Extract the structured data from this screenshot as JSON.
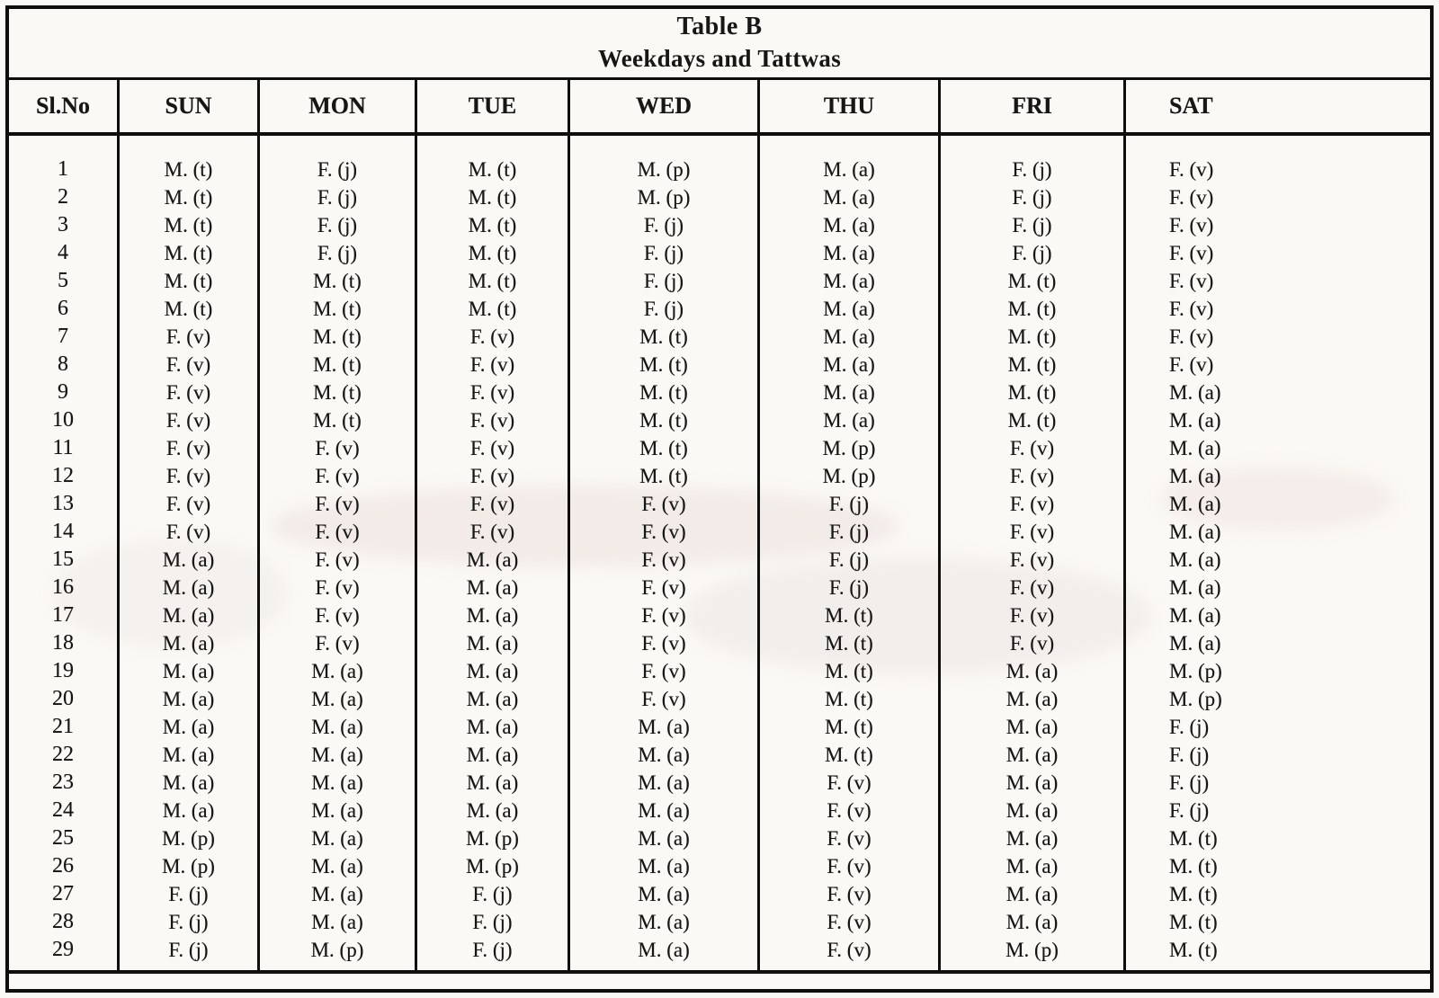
{
  "title": {
    "line1": "Table B",
    "line2": "Weekdays and Tattwas"
  },
  "columns": [
    "Sl.No",
    "SUN",
    "MON",
    "TUE",
    "WED",
    "THU",
    "FRI",
    "SAT"
  ],
  "rows": [
    {
      "sl": "1",
      "values": [
        "M. (t)",
        "F. (j)",
        "M. (t)",
        "M. (p)",
        "M. (a)",
        "F. (j)",
        "F. (v)"
      ]
    },
    {
      "sl": "2",
      "values": [
        "M. (t)",
        "F. (j)",
        "M. (t)",
        "M. (p)",
        "M. (a)",
        "F. (j)",
        "F. (v)"
      ]
    },
    {
      "sl": "3",
      "values": [
        "M. (t)",
        "F. (j)",
        "M. (t)",
        "F. (j)",
        "M. (a)",
        "F. (j)",
        "F. (v)"
      ]
    },
    {
      "sl": "4",
      "values": [
        "M. (t)",
        "F. (j)",
        "M. (t)",
        "F. (j)",
        "M. (a)",
        "F. (j)",
        "F. (v)"
      ]
    },
    {
      "sl": "5",
      "values": [
        "M. (t)",
        "M. (t)",
        "M. (t)",
        "F. (j)",
        "M. (a)",
        "M. (t)",
        "F. (v)"
      ]
    },
    {
      "sl": "6",
      "values": [
        "M. (t)",
        "M. (t)",
        "M. (t)",
        "F. (j)",
        "M. (a)",
        "M. (t)",
        "F. (v)"
      ]
    },
    {
      "sl": "7",
      "values": [
        "F. (v)",
        "M. (t)",
        "F. (v)",
        "M. (t)",
        "M. (a)",
        "M. (t)",
        "F. (v)"
      ]
    },
    {
      "sl": "8",
      "values": [
        "F. (v)",
        "M. (t)",
        "F. (v)",
        "M. (t)",
        "M. (a)",
        "M. (t)",
        "F. (v)"
      ]
    },
    {
      "sl": "9",
      "values": [
        "F. (v)",
        "M. (t)",
        "F. (v)",
        "M. (t)",
        "M. (a)",
        "M. (t)",
        "M. (a)"
      ]
    },
    {
      "sl": "10",
      "values": [
        "F. (v)",
        "M. (t)",
        "F. (v)",
        "M. (t)",
        "M. (a)",
        "M. (t)",
        "M. (a)"
      ]
    },
    {
      "sl": "11",
      "values": [
        "F. (v)",
        "F. (v)",
        "F. (v)",
        "M. (t)",
        "M. (p)",
        "F. (v)",
        "M. (a)"
      ]
    },
    {
      "sl": "12",
      "values": [
        "F. (v)",
        "F. (v)",
        "F. (v)",
        "M. (t)",
        "M. (p)",
        "F. (v)",
        "M. (a)"
      ]
    },
    {
      "sl": "13",
      "values": [
        "F. (v)",
        "F. (v)",
        "F. (v)",
        "F. (v)",
        "F. (j)",
        "F. (v)",
        "M. (a)"
      ]
    },
    {
      "sl": "14",
      "values": [
        "F. (v)",
        "F. (v)",
        "F. (v)",
        "F. (v)",
        "F. (j)",
        "F. (v)",
        "M. (a)"
      ]
    },
    {
      "sl": "15",
      "values": [
        "M. (a)",
        "F. (v)",
        "M. (a)",
        "F. (v)",
        "F. (j)",
        "F. (v)",
        "M. (a)"
      ]
    },
    {
      "sl": "16",
      "values": [
        "M. (a)",
        "F. (v)",
        "M. (a)",
        "F. (v)",
        "F. (j)",
        "F. (v)",
        "M. (a)"
      ]
    },
    {
      "sl": "17",
      "values": [
        "M. (a)",
        "F. (v)",
        "M. (a)",
        "F. (v)",
        "M. (t)",
        "F. (v)",
        "M. (a)"
      ]
    },
    {
      "sl": "18",
      "values": [
        "M. (a)",
        "F. (v)",
        "M. (a)",
        "F. (v)",
        "M. (t)",
        "F. (v)",
        "M. (a)"
      ]
    },
    {
      "sl": "19",
      "values": [
        "M. (a)",
        "M. (a)",
        "M. (a)",
        "F. (v)",
        "M. (t)",
        "M. (a)",
        "M. (p)"
      ]
    },
    {
      "sl": "20",
      "values": [
        "M. (a)",
        "M. (a)",
        "M. (a)",
        "F. (v)",
        "M. (t)",
        "M. (a)",
        "M. (p)"
      ]
    },
    {
      "sl": "21",
      "values": [
        "M. (a)",
        "M. (a)",
        "M. (a)",
        "M. (a)",
        "M. (t)",
        "M. (a)",
        "F. (j)"
      ]
    },
    {
      "sl": "22",
      "values": [
        "M. (a)",
        "M. (a)",
        "M. (a)",
        "M. (a)",
        "M. (t)",
        "M. (a)",
        "F. (j)"
      ]
    },
    {
      "sl": "23",
      "values": [
        "M. (a)",
        "M. (a)",
        "M. (a)",
        "M. (a)",
        "F. (v)",
        "M. (a)",
        "F. (j)"
      ]
    },
    {
      "sl": "24",
      "values": [
        "M. (a)",
        "M. (a)",
        "M. (a)",
        "M. (a)",
        "F. (v)",
        "M. (a)",
        "F. (j)"
      ]
    },
    {
      "sl": "25",
      "values": [
        "M. (p)",
        "M. (a)",
        "M. (p)",
        "M. (a)",
        "F. (v)",
        "M. (a)",
        "M. (t)"
      ]
    },
    {
      "sl": "26",
      "values": [
        "M. (p)",
        "M. (a)",
        "M. (p)",
        "M. (a)",
        "F. (v)",
        "M. (a)",
        "M. (t)"
      ]
    },
    {
      "sl": "27",
      "values": [
        "F. (j)",
        "M. (a)",
        "F. (j)",
        "M. (a)",
        "F. (v)",
        "M. (a)",
        "M. (t)"
      ]
    },
    {
      "sl": "28",
      "values": [
        "F. (j)",
        "M. (a)",
        "F. (j)",
        "M. (a)",
        "F. (v)",
        "M. (a)",
        "M. (t)"
      ]
    },
    {
      "sl": "29",
      "values": [
        "F. (j)",
        "M. (p)",
        "F. (j)",
        "M. (a)",
        "F. (v)",
        "M. (p)",
        "M. (t)"
      ]
    }
  ],
  "colors": {
    "paper": "#fbf9f5",
    "ink": "#161616",
    "border": "#0e0e0e"
  }
}
